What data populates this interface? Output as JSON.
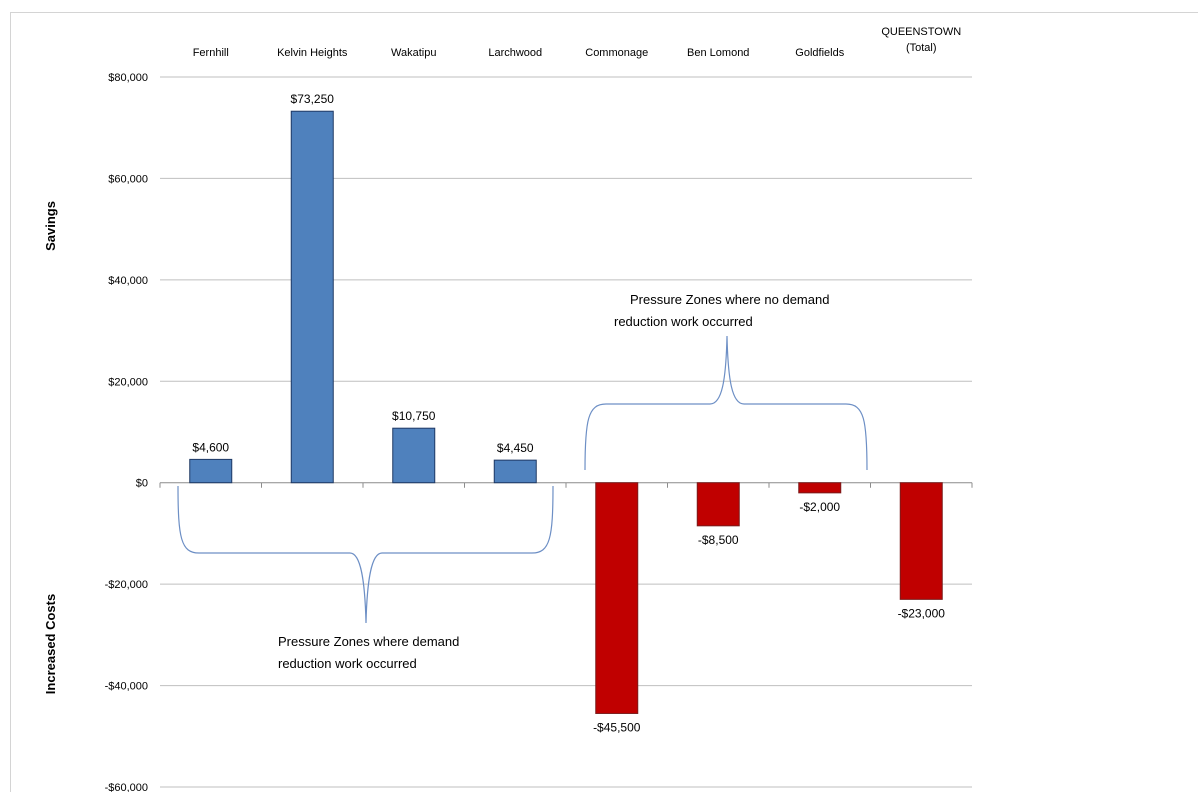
{
  "chart_data": {
    "type": "bar",
    "categories": [
      "Fernhill",
      "Kelvin Heights",
      "Wakatipu",
      "Larchwood",
      "Commonage",
      "Ben Lomond",
      "Goldfields",
      "QUEENSTOWN (Total)"
    ],
    "category_lines": [
      [
        "Fernhill"
      ],
      [
        "Kelvin Heights"
      ],
      [
        "Wakatipu"
      ],
      [
        "Larchwood"
      ],
      [
        "Commonage"
      ],
      [
        "Ben Lomond"
      ],
      [
        "Goldfields"
      ],
      [
        "QUEENSTOWN",
        "(Total)"
      ]
    ],
    "values": [
      4600,
      73250,
      10750,
      4450,
      -45500,
      -8500,
      -2000,
      -23000
    ],
    "data_labels": [
      "$4,600",
      "$73,250",
      "$10,750",
      "$4,450",
      "-$45,500",
      "-$8,500",
      "-$2,000",
      "-$23,000"
    ],
    "ylim": [
      -60000,
      80000
    ],
    "yticks": [
      80000,
      60000,
      40000,
      20000,
      0,
      -20000,
      -40000,
      -60000
    ],
    "ytick_labels": [
      "$80,000",
      "$60,000",
      "$40,000",
      "$20,000",
      "$0",
      "-$20,000",
      "-$40,000",
      "-$60,000"
    ],
    "ylabel_positive": "Savings",
    "ylabel_negative": "Increased Costs",
    "grid": true,
    "category_axis_position": "top",
    "colors": {
      "positive": "#4f81bd",
      "positive_border": "#1f3864",
      "negative": "#c00000",
      "negative_border": "#7a1a1a",
      "brace": "#6d8fc5",
      "grid": "#bfbfbf"
    },
    "annotations": [
      {
        "lines": [
          "Pressure Zones where no demand",
          "reduction work occurred"
        ]
      },
      {
        "lines": [
          "Pressure Zones where demand",
          "reduction work occurred"
        ]
      }
    ]
  }
}
